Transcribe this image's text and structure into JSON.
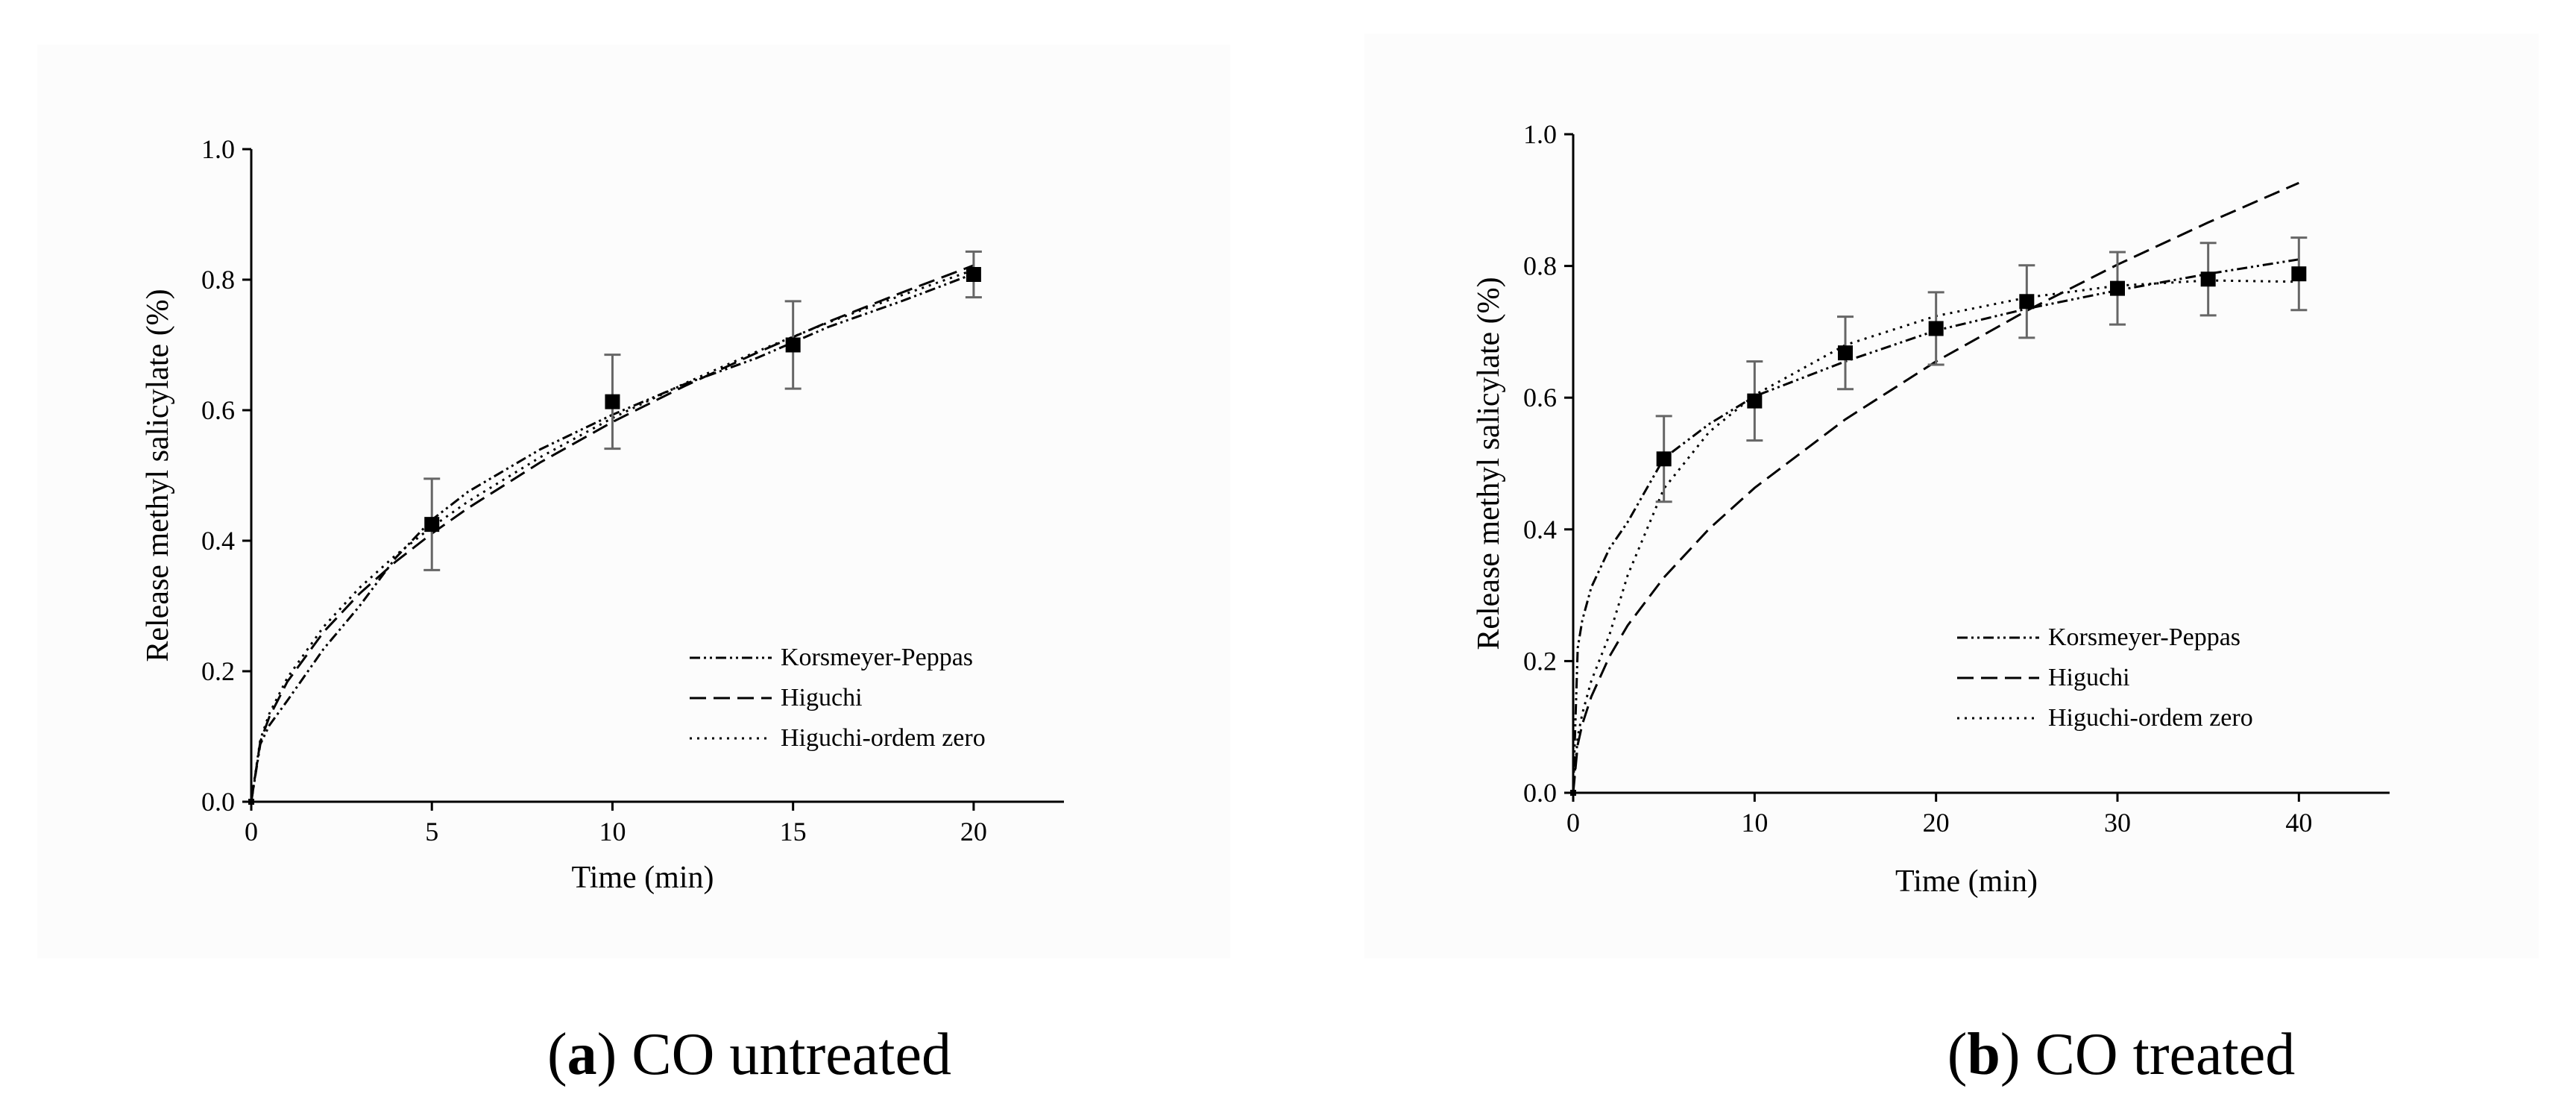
{
  "chart_data": [
    {
      "type": "scatter",
      "caption_letter": "a",
      "caption_text": "CO untreated",
      "xlabel": "Time (min)",
      "ylabel": "Release methyl salicylate (%)",
      "xlim": [
        0,
        22.5
      ],
      "ylim": [
        0,
        1.0
      ],
      "xticks": [
        "0",
        "5",
        "10",
        "15",
        "20"
      ],
      "yticks": [
        "0.0",
        "0.2",
        "0.4",
        "0.6",
        "0.8",
        "1.0"
      ],
      "grid": false,
      "legend_position": "bottom-right",
      "points": [
        {
          "x": 0,
          "y": 0.0,
          "err": 0.0
        },
        {
          "x": 5,
          "y": 0.425,
          "err": 0.07
        },
        {
          "x": 10,
          "y": 0.613,
          "err": 0.072
        },
        {
          "x": 15,
          "y": 0.7,
          "err": 0.067
        },
        {
          "x": 20,
          "y": 0.808,
          "err": 0.035
        }
      ],
      "series": [
        {
          "name": "Korsmeyer-Peppas",
          "dash": "dashdotdot",
          "xmax": 20,
          "x": [
            0,
            0.25,
            0.5,
            1,
            2,
            3,
            4,
            5,
            6,
            8,
            10,
            12,
            14,
            16,
            18,
            20
          ],
          "y": [
            0,
            0.088,
            0.117,
            0.155,
            0.234,
            0.3,
            0.374,
            0.432,
            0.475,
            0.54,
            0.593,
            0.64,
            0.68,
            0.728,
            0.767,
            0.809
          ]
        },
        {
          "name": "Higuchi",
          "dash": "dashed",
          "xmax": 20,
          "x": [
            0,
            0.25,
            0.5,
            1,
            2,
            3,
            4,
            5,
            6,
            8,
            10,
            12,
            14,
            16,
            18,
            20
          ],
          "y": [
            0,
            0.092,
            0.13,
            0.184,
            0.26,
            0.319,
            0.368,
            0.411,
            0.45,
            0.52,
            0.582,
            0.637,
            0.688,
            0.736,
            0.78,
            0.822
          ]
        },
        {
          "name": "Higuchi-ordem zero",
          "dash": "dotted",
          "xmax": 20,
          "x": [
            0,
            0.25,
            0.5,
            1,
            2,
            3,
            4,
            5,
            6,
            8,
            10,
            12,
            14,
            16,
            18,
            20
          ],
          "y": [
            0,
            0.095,
            0.135,
            0.19,
            0.268,
            0.328,
            0.378,
            0.421,
            0.46,
            0.528,
            0.588,
            0.641,
            0.69,
            0.735,
            0.776,
            0.815
          ]
        }
      ]
    },
    {
      "type": "scatter",
      "caption_letter": "b",
      "caption_text": "CO treated",
      "xlabel": "Time (min)",
      "ylabel": "Release methyl salicylate (%)",
      "xlim": [
        0,
        45
      ],
      "ylim": [
        0,
        1.0
      ],
      "xticks": [
        "0",
        "10",
        "20",
        "30",
        "40"
      ],
      "yticks": [
        "0.0",
        "0.2",
        "0.4",
        "0.6",
        "0.8",
        "1.0"
      ],
      "grid": false,
      "legend_position": "bottom-right",
      "points": [
        {
          "x": 0,
          "y": 0.0,
          "err": 0.0
        },
        {
          "x": 5,
          "y": 0.507,
          "err": 0.065
        },
        {
          "x": 10,
          "y": 0.595,
          "err": 0.06
        },
        {
          "x": 15,
          "y": 0.668,
          "err": 0.055
        },
        {
          "x": 20,
          "y": 0.705,
          "err": 0.055
        },
        {
          "x": 25,
          "y": 0.746,
          "err": 0.055
        },
        {
          "x": 30,
          "y": 0.766,
          "err": 0.055
        },
        {
          "x": 35,
          "y": 0.78,
          "err": 0.055
        },
        {
          "x": 40,
          "y": 0.788,
          "err": 0.055
        }
      ],
      "series": [
        {
          "name": "Korsmeyer-Peppas",
          "dash": "dashdotdot",
          "xmax": 40,
          "x": [
            0,
            0.25,
            0.5,
            1,
            2,
            3,
            5,
            7.5,
            10,
            15,
            20,
            25,
            30,
            35,
            40
          ],
          "y": [
            0,
            0.22,
            0.262,
            0.312,
            0.371,
            0.411,
            0.508,
            0.56,
            0.602,
            0.655,
            0.702,
            0.735,
            0.763,
            0.788,
            0.81
          ]
        },
        {
          "name": "Higuchi",
          "dash": "dashed",
          "xmax": 40,
          "x": [
            0,
            0.25,
            0.5,
            1,
            2,
            3,
            5,
            7.5,
            10,
            15,
            20,
            25,
            30,
            35,
            40
          ],
          "y": [
            0,
            0.073,
            0.104,
            0.146,
            0.207,
            0.254,
            0.327,
            0.401,
            0.463,
            0.567,
            0.655,
            0.732,
            0.802,
            0.866,
            0.926
          ]
        },
        {
          "name": "Higuchi-ordem zero",
          "dash": "dotted",
          "xmax": 40,
          "x": [
            0,
            0.25,
            0.5,
            1,
            2,
            3,
            5,
            7.5,
            10,
            15,
            20,
            25,
            30,
            35,
            40
          ],
          "y": [
            0,
            0.085,
            0.12,
            0.17,
            0.24,
            0.33,
            0.462,
            0.548,
            0.604,
            0.68,
            0.724,
            0.752,
            0.77,
            0.778,
            0.776
          ]
        }
      ]
    }
  ]
}
